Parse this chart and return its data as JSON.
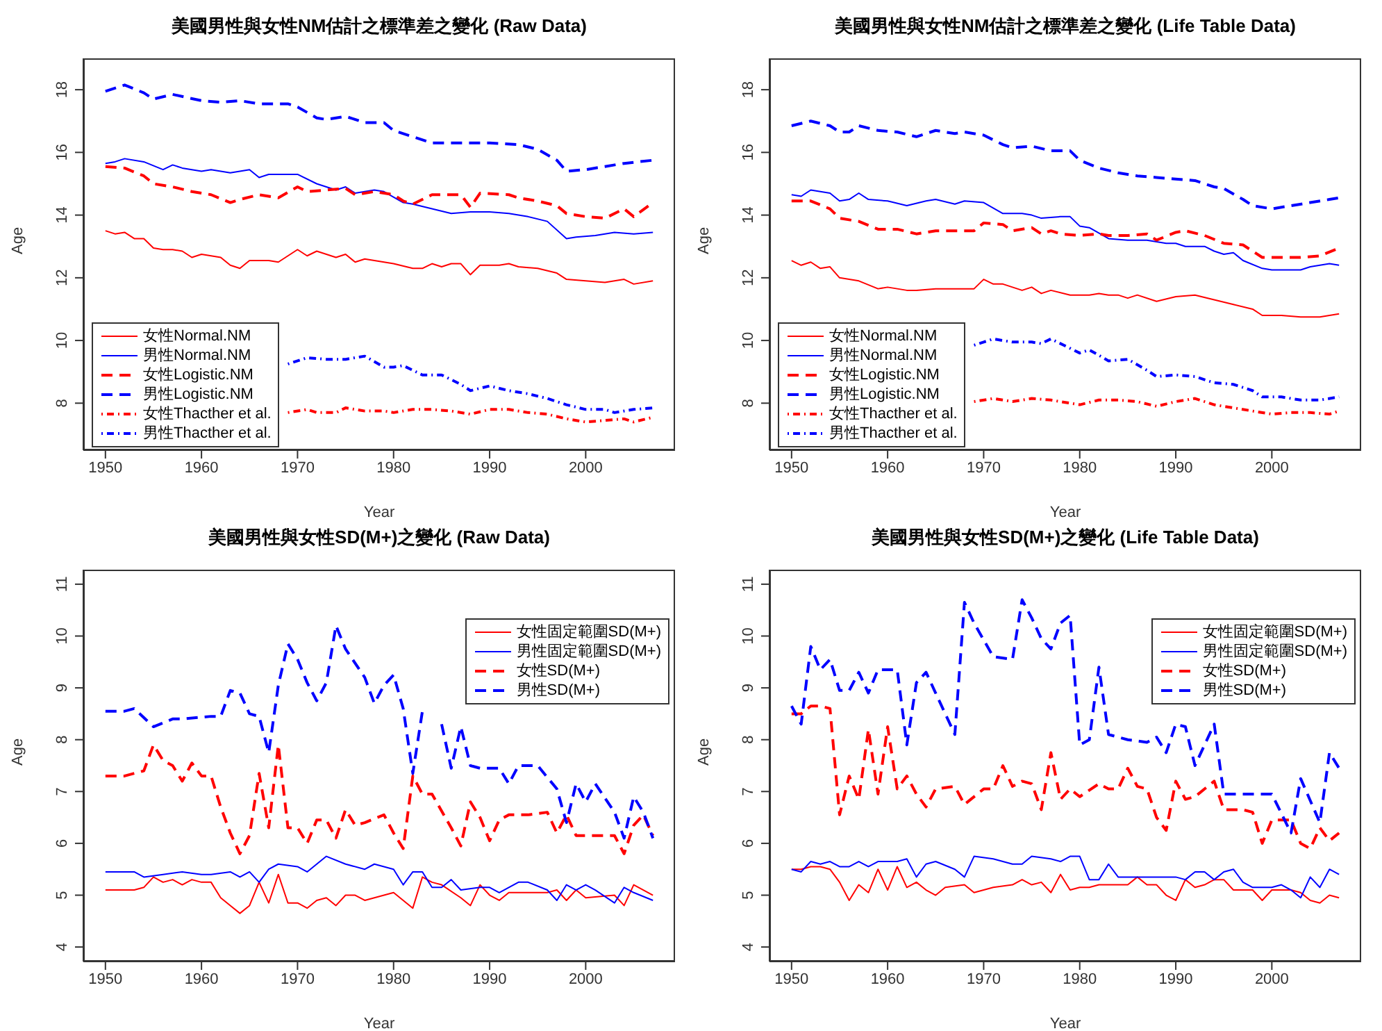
{
  "chart_data": [
    {
      "type": "line",
      "title": "美國男性與女性NM估計之標準差之變化 (Raw Data)",
      "xlabel": "Year",
      "ylabel": "Age",
      "xlim": [
        1947.7,
        2009.3
      ],
      "ylim": [
        6.5,
        19
      ],
      "xticks": [
        1950,
        1960,
        1970,
        1980,
        1990,
        2000
      ],
      "yticks": [
        8,
        10,
        12,
        14,
        16,
        18
      ],
      "legend": "bottom left",
      "series": [
        {
          "name": "女性Normal.NM",
          "color": "#ff0000",
          "line_style": "solid",
          "x": [
            1950,
            1951,
            1952,
            1953,
            1954,
            1955,
            1956,
            1957,
            1958,
            1959,
            1960,
            1962,
            1963,
            1964,
            1965,
            1967,
            1968,
            1970,
            1971,
            1972,
            1974,
            1975,
            1976,
            1977,
            1978,
            1980,
            1982,
            1983,
            1984,
            1985,
            1986,
            1987,
            1988,
            1989,
            1991,
            1992,
            1993,
            1995,
            1997,
            1998,
            2000,
            2002,
            2004,
            2005,
            2007
          ],
          "values": [
            13.5,
            13.4,
            13.45,
            13.25,
            13.25,
            12.95,
            12.9,
            12.9,
            12.85,
            12.65,
            12.75,
            12.65,
            12.4,
            12.3,
            12.55,
            12.55,
            12.5,
            12.9,
            12.7,
            12.85,
            12.65,
            12.75,
            12.5,
            12.6,
            12.55,
            12.45,
            12.3,
            12.3,
            12.45,
            12.35,
            12.45,
            12.45,
            12.1,
            12.4,
            12.4,
            12.45,
            12.35,
            12.3,
            12.15,
            11.95,
            11.9,
            11.85,
            11.95,
            11.8,
            11.9
          ]
        },
        {
          "name": "男性Normal.NM",
          "color": "#0000ff",
          "line_style": "solid",
          "x": [
            1950,
            1951,
            1952,
            1954,
            1956,
            1957,
            1958,
            1960,
            1961,
            1963,
            1965,
            1966,
            1967,
            1970,
            1972,
            1974,
            1975,
            1976,
            1978,
            1979,
            1981,
            1982,
            1984,
            1986,
            1988,
            1990,
            1992,
            1994,
            1996,
            1998,
            1999,
            2001,
            2003,
            2005,
            2007
          ],
          "values": [
            15.65,
            15.7,
            15.8,
            15.7,
            15.45,
            15.6,
            15.5,
            15.4,
            15.45,
            15.35,
            15.45,
            15.2,
            15.3,
            15.3,
            15.0,
            14.8,
            14.9,
            14.7,
            14.8,
            14.75,
            14.4,
            14.35,
            14.2,
            14.05,
            14.1,
            14.1,
            14.05,
            13.95,
            13.8,
            13.25,
            13.3,
            13.35,
            13.45,
            13.4,
            13.45
          ]
        },
        {
          "name": "女性Logistic.NM",
          "color": "#ff0000",
          "line_style": "dashed",
          "x": [
            1950,
            1952,
            1954,
            1955,
            1957,
            1959,
            1961,
            1963,
            1964,
            1966,
            1968,
            1970,
            1971,
            1973,
            1975,
            1976,
            1978,
            1980,
            1981,
            1982,
            1984,
            1987,
            1988,
            1989,
            1992,
            1993,
            1995,
            1997,
            1998,
            2000,
            2002,
            2004,
            2005,
            2007
          ],
          "values": [
            15.55,
            15.5,
            15.25,
            15.0,
            14.9,
            14.75,
            14.65,
            14.4,
            14.5,
            14.65,
            14.55,
            14.9,
            14.75,
            14.8,
            14.85,
            14.65,
            14.75,
            14.65,
            14.45,
            14.35,
            14.65,
            14.65,
            14.25,
            14.7,
            14.65,
            14.55,
            14.45,
            14.3,
            14.05,
            13.95,
            13.9,
            14.2,
            13.95,
            14.4
          ]
        },
        {
          "name": "男性Logistic.NM",
          "color": "#0000ff",
          "line_style": "dashed",
          "x": [
            1950,
            1952,
            1954,
            1955,
            1957,
            1960,
            1962,
            1964,
            1966,
            1969,
            1970,
            1972,
            1973,
            1975,
            1977,
            1979,
            1980,
            1982,
            1984,
            1987,
            1990,
            1993,
            1995,
            1997,
            1998,
            2000,
            2002,
            2004,
            2007
          ],
          "values": [
            17.95,
            18.15,
            17.9,
            17.7,
            17.85,
            17.65,
            17.6,
            17.65,
            17.55,
            17.55,
            17.45,
            17.1,
            17.05,
            17.15,
            16.95,
            16.95,
            16.7,
            16.5,
            16.3,
            16.3,
            16.3,
            16.25,
            16.1,
            15.75,
            15.4,
            15.45,
            15.55,
            15.65,
            15.75
          ]
        },
        {
          "name": "女性Thacther et al.",
          "color": "#ff0000",
          "line_style": "dotted",
          "x": [
            1969,
            1971,
            1972,
            1974,
            1975,
            1977,
            1979,
            1980,
            1982,
            1984,
            1986,
            1988,
            1990,
            1992,
            1994,
            1996,
            1998,
            2000,
            2002,
            2004,
            2005,
            2007
          ],
          "values": [
            7.7,
            7.8,
            7.7,
            7.7,
            7.85,
            7.75,
            7.75,
            7.7,
            7.8,
            7.8,
            7.75,
            7.65,
            7.8,
            7.8,
            7.7,
            7.65,
            7.5,
            7.4,
            7.45,
            7.5,
            7.4,
            7.55
          ]
        },
        {
          "name": "男性Thacther et al.",
          "color": "#0000ff",
          "line_style": "dotted",
          "x": [
            1969,
            1971,
            1973,
            1975,
            1977,
            1979,
            1980,
            1981,
            1983,
            1985,
            1987,
            1988,
            1990,
            1992,
            1994,
            1996,
            1998,
            2000,
            2002,
            2003,
            2005,
            2007
          ],
          "values": [
            9.25,
            9.45,
            9.4,
            9.4,
            9.5,
            9.15,
            9.15,
            9.2,
            8.9,
            8.9,
            8.6,
            8.4,
            8.55,
            8.4,
            8.3,
            8.15,
            7.95,
            7.8,
            7.8,
            7.7,
            7.8,
            7.85
          ]
        }
      ]
    },
    {
      "type": "line",
      "title": "美國男性與女性NM估計之標準差之變化 (Life Table Data)",
      "xlabel": "Year",
      "ylabel": "Age",
      "xlim": [
        1947.7,
        2009.3
      ],
      "ylim": [
        6.5,
        19
      ],
      "xticks": [
        1950,
        1960,
        1970,
        1980,
        1990,
        2000
      ],
      "yticks": [
        8,
        10,
        12,
        14,
        16,
        18
      ],
      "legend": "bottom left",
      "series": [
        {
          "name": "女性Normal.NM",
          "color": "#ff0000",
          "line_style": "solid",
          "x": [
            1950,
            1951,
            1952,
            1953,
            1954,
            1955,
            1957,
            1959,
            1960,
            1962,
            1963,
            1965,
            1968,
            1969,
            1970,
            1971,
            1972,
            1974,
            1975,
            1976,
            1977,
            1979,
            1981,
            1982,
            1983,
            1984,
            1985,
            1986,
            1988,
            1990,
            1992,
            1994,
            1996,
            1998,
            1999,
            2001,
            2003,
            2005,
            2007
          ],
          "values": [
            12.55,
            12.4,
            12.5,
            12.3,
            12.35,
            12.0,
            11.9,
            11.65,
            11.7,
            11.6,
            11.6,
            11.65,
            11.65,
            11.65,
            11.95,
            11.8,
            11.8,
            11.6,
            11.7,
            11.5,
            11.6,
            11.45,
            11.45,
            11.5,
            11.45,
            11.45,
            11.35,
            11.45,
            11.25,
            11.4,
            11.45,
            11.3,
            11.15,
            11.0,
            10.8,
            10.8,
            10.75,
            10.75,
            10.85
          ]
        },
        {
          "name": "男性Normal.NM",
          "color": "#0000ff",
          "line_style": "solid",
          "x": [
            1950,
            1951,
            1952,
            1954,
            1955,
            1956,
            1957,
            1958,
            1960,
            1962,
            1964,
            1965,
            1967,
            1968,
            1970,
            1972,
            1974,
            1975,
            1976,
            1978,
            1979,
            1980,
            1981,
            1983,
            1985,
            1987,
            1989,
            1990,
            1991,
            1993,
            1994,
            1995,
            1996,
            1997,
            1999,
            2000,
            2002,
            2003,
            2004,
            2006,
            2007
          ],
          "values": [
            14.65,
            14.6,
            14.8,
            14.7,
            14.45,
            14.5,
            14.7,
            14.5,
            14.45,
            14.3,
            14.45,
            14.5,
            14.35,
            14.45,
            14.4,
            14.05,
            14.05,
            14.0,
            13.9,
            13.95,
            13.95,
            13.65,
            13.6,
            13.25,
            13.2,
            13.2,
            13.1,
            13.1,
            13.0,
            13.0,
            12.85,
            12.75,
            12.8,
            12.55,
            12.3,
            12.25,
            12.25,
            12.25,
            12.35,
            12.45,
            12.4
          ]
        },
        {
          "name": "女性Logistic.NM",
          "color": "#ff0000",
          "line_style": "dashed",
          "x": [
            1950,
            1952,
            1954,
            1955,
            1957,
            1959,
            1961,
            1963,
            1965,
            1967,
            1969,
            1970,
            1972,
            1973,
            1975,
            1976,
            1977,
            1978,
            1980,
            1982,
            1983,
            1985,
            1987,
            1988,
            1990,
            1991,
            1993,
            1995,
            1997,
            1999,
            2001,
            2003,
            2005,
            2007
          ],
          "values": [
            14.45,
            14.45,
            14.2,
            13.9,
            13.8,
            13.55,
            13.55,
            13.4,
            13.5,
            13.5,
            13.5,
            13.75,
            13.7,
            13.5,
            13.6,
            13.4,
            13.5,
            13.4,
            13.35,
            13.4,
            13.35,
            13.35,
            13.4,
            13.2,
            13.45,
            13.5,
            13.35,
            13.1,
            13.05,
            12.65,
            12.65,
            12.65,
            12.7,
            12.95
          ]
        },
        {
          "name": "男性Logistic.NM",
          "color": "#0000ff",
          "line_style": "dashed",
          "x": [
            1950,
            1952,
            1954,
            1955,
            1956,
            1957,
            1959,
            1961,
            1963,
            1965,
            1967,
            1968,
            1970,
            1972,
            1973,
            1975,
            1977,
            1979,
            1980,
            1982,
            1984,
            1986,
            1988,
            1990,
            1992,
            1994,
            1995,
            1997,
            1998,
            2000,
            2002,
            2004,
            2006,
            2007
          ],
          "values": [
            16.85,
            17.0,
            16.85,
            16.65,
            16.65,
            16.85,
            16.7,
            16.65,
            16.5,
            16.7,
            16.6,
            16.65,
            16.55,
            16.25,
            16.15,
            16.2,
            16.05,
            16.05,
            15.75,
            15.5,
            15.35,
            15.25,
            15.2,
            15.15,
            15.1,
            14.9,
            14.85,
            14.5,
            14.3,
            14.2,
            14.3,
            14.4,
            14.5,
            14.55
          ]
        },
        {
          "name": "女性Thacther et al.",
          "color": "#ff0000",
          "line_style": "dotted",
          "x": [
            1969,
            1971,
            1973,
            1975,
            1977,
            1980,
            1982,
            1984,
            1986,
            1988,
            1990,
            1992,
            1994,
            1996,
            1998,
            2000,
            2002,
            2004,
            2006,
            2007
          ],
          "values": [
            8.05,
            8.15,
            8.05,
            8.15,
            8.1,
            7.95,
            8.1,
            8.1,
            8.05,
            7.9,
            8.05,
            8.15,
            7.95,
            7.85,
            7.75,
            7.65,
            7.7,
            7.7,
            7.65,
            7.75
          ]
        },
        {
          "name": "男性Thacther et al.",
          "color": "#0000ff",
          "line_style": "dotted",
          "x": [
            1969,
            1970,
            1971,
            1973,
            1975,
            1976,
            1977,
            1979,
            1980,
            1981,
            1983,
            1985,
            1987,
            1988,
            1990,
            1992,
            1994,
            1996,
            1998,
            1999,
            2001,
            2003,
            2005,
            2007
          ],
          "values": [
            9.85,
            9.95,
            10.05,
            9.95,
            9.95,
            9.9,
            10.05,
            9.75,
            9.6,
            9.7,
            9.35,
            9.4,
            9.05,
            8.85,
            8.9,
            8.85,
            8.65,
            8.6,
            8.4,
            8.2,
            8.2,
            8.1,
            8.1,
            8.2
          ]
        }
      ]
    },
    {
      "type": "line",
      "title": "美國男性與女性SD(M+)之變化 (Raw Data)",
      "xlabel": "Year",
      "ylabel": "Age",
      "xlim": [
        1947.7,
        2009.3
      ],
      "ylim": [
        3.72,
        11.28
      ],
      "xticks": [
        1950,
        1960,
        1970,
        1980,
        1990,
        2000
      ],
      "yticks": [
        4,
        5,
        6,
        7,
        8,
        9,
        10,
        11
      ],
      "legend": "top right",
      "series": [
        {
          "name": "女性固定範圍SD(M+)",
          "color": "#ff0000",
          "line_style": "solid",
          "x": [
            1950,
            1951,
            1953,
            1954,
            1955,
            1956,
            1957,
            1958,
            1959,
            1960,
            1961,
            1962,
            1963,
            1964,
            1965,
            1966,
            1967,
            1968,
            1969,
            1970,
            1971,
            1972,
            1973,
            1974,
            1975,
            1976,
            1977,
            1978,
            1980,
            1981,
            1982,
            1983,
            1984,
            1985,
            1987,
            1988,
            1989,
            1990,
            1991,
            1992,
            1994,
            1996,
            1997,
            1998,
            1999,
            2000,
            2003,
            2004,
            2005,
            2007
          ],
          "values": [
            5.1,
            5.1,
            5.1,
            5.15,
            5.35,
            5.25,
            5.3,
            5.2,
            5.3,
            5.25,
            5.25,
            4.95,
            4.8,
            4.65,
            4.8,
            5.25,
            4.85,
            5.4,
            4.85,
            4.85,
            4.75,
            4.9,
            4.95,
            4.8,
            5.0,
            5.0,
            4.9,
            4.95,
            5.05,
            4.9,
            4.75,
            5.35,
            5.25,
            5.2,
            4.95,
            4.8,
            5.2,
            5.0,
            4.9,
            5.05,
            5.05,
            5.05,
            5.1,
            4.9,
            5.1,
            4.95,
            5.0,
            4.8,
            5.2,
            5.0
          ]
        },
        {
          "name": "男性固定範圍SD(M+)",
          "color": "#0000ff",
          "line_style": "solid",
          "x": [
            1950,
            1953,
            1954,
            1956,
            1958,
            1960,
            1961,
            1963,
            1964,
            1965,
            1966,
            1967,
            1968,
            1970,
            1971,
            1973,
            1975,
            1977,
            1978,
            1980,
            1981,
            1982,
            1983,
            1984,
            1985,
            1986,
            1987,
            1989,
            1990,
            1991,
            1993,
            1994,
            1996,
            1997,
            1998,
            1999,
            2000,
            2001,
            2003,
            2004,
            2005,
            2007
          ],
          "values": [
            5.45,
            5.45,
            5.35,
            5.4,
            5.45,
            5.4,
            5.4,
            5.45,
            5.35,
            5.45,
            5.25,
            5.5,
            5.6,
            5.55,
            5.45,
            5.75,
            5.6,
            5.5,
            5.6,
            5.5,
            5.2,
            5.45,
            5.45,
            5.15,
            5.15,
            5.3,
            5.1,
            5.15,
            5.15,
            5.05,
            5.25,
            5.25,
            5.1,
            4.9,
            5.2,
            5.1,
            5.2,
            5.1,
            4.85,
            5.15,
            5.05,
            4.9
          ]
        },
        {
          "name": "女性SD(M+)",
          "color": "#ff0000",
          "line_style": "dashed",
          "x": [
            1950,
            1952,
            1954,
            1955,
            1956,
            1957,
            1958,
            1959,
            1960,
            1961,
            1962,
            1963,
            1964,
            1965,
            1966,
            1967,
            1968,
            1969,
            1970,
            1971,
            1972,
            1973,
            1974,
            1975,
            1976,
            1977,
            1979,
            1980,
            1981,
            1982,
            1983,
            1984,
            1986,
            1987,
            1988,
            1989,
            1990,
            1991,
            1992,
            1994,
            1996,
            1997,
            1998,
            1999,
            2001,
            2003,
            2004,
            2005,
            2006,
            2007
          ],
          "values": [
            7.3,
            7.3,
            7.4,
            7.9,
            7.6,
            7.5,
            7.2,
            7.55,
            7.3,
            7.3,
            6.7,
            6.2,
            5.8,
            6.15,
            7.35,
            6.3,
            7.9,
            6.3,
            6.3,
            6.0,
            6.45,
            6.45,
            6.1,
            6.65,
            6.35,
            6.4,
            6.55,
            6.2,
            5.9,
            7.3,
            6.95,
            6.95,
            6.3,
            5.95,
            6.8,
            6.5,
            6.05,
            6.45,
            6.55,
            6.55,
            6.6,
            6.2,
            6.55,
            6.15,
            6.15,
            6.15,
            5.8,
            6.35,
            6.55,
            6.15
          ]
        },
        {
          "name": "男性SD(M+)",
          "color": "#0000ff",
          "line_style": "dashed",
          "x": [
            1950,
            1952,
            1953,
            1955,
            1957,
            1958,
            1961,
            1962,
            1963,
            1964,
            1965,
            1966,
            1967,
            1968,
            1969,
            1970,
            1971,
            1972,
            1973,
            1974,
            1975,
            1977,
            1978,
            1979,
            1980,
            1981,
            1982,
            1983,
            1984,
            1985,
            1986,
            1987,
            1988,
            1989,
            1991,
            1992,
            1993,
            1995,
            1997,
            1998,
            1999,
            2000,
            2001,
            2003,
            2004,
            2005,
            2006,
            2007
          ],
          "values": [
            8.55,
            8.55,
            8.6,
            8.25,
            8.4,
            8.4,
            8.45,
            8.45,
            8.95,
            8.9,
            8.5,
            8.45,
            7.75,
            9.05,
            9.85,
            9.55,
            9.1,
            8.75,
            9.1,
            10.2,
            9.75,
            9.2,
            8.7,
            9.05,
            9.25,
            8.6,
            7.35,
            8.55,
            null,
            8.3,
            7.45,
            8.25,
            7.5,
            7.45,
            7.45,
            7.15,
            7.5,
            7.5,
            7.05,
            6.4,
            7.15,
            6.8,
            7.15,
            6.6,
            6.1,
            6.9,
            6.6,
            6.1
          ]
        }
      ]
    },
    {
      "type": "line",
      "title": "美國男性與女性SD(M+)之變化 (Life Table Data)",
      "xlabel": "Year",
      "ylabel": "Age",
      "xlim": [
        1947.7,
        2009.3
      ],
      "ylim": [
        3.72,
        11.28
      ],
      "xticks": [
        1950,
        1960,
        1970,
        1980,
        1990,
        2000
      ],
      "yticks": [
        4,
        5,
        6,
        7,
        8,
        9,
        10,
        11
      ],
      "legend": "top right",
      "series": [
        {
          "name": "女性固定範圍SD(M+)",
          "color": "#ff0000",
          "line_style": "solid",
          "x": [
            1950,
            1951,
            1952,
            1953,
            1954,
            1955,
            1956,
            1957,
            1958,
            1959,
            1960,
            1961,
            1962,
            1963,
            1964,
            1965,
            1966,
            1968,
            1969,
            1970,
            1971,
            1973,
            1974,
            1975,
            1976,
            1977,
            1978,
            1979,
            1980,
            1981,
            1982,
            1983,
            1985,
            1986,
            1987,
            1988,
            1989,
            1990,
            1991,
            1992,
            1993,
            1994,
            1995,
            1996,
            1997,
            1998,
            1999,
            2000,
            2001,
            2002,
            2003,
            2004,
            2005,
            2006,
            2007
          ],
          "values": [
            5.5,
            5.5,
            5.55,
            5.55,
            5.5,
            5.25,
            4.9,
            5.2,
            5.05,
            5.5,
            5.1,
            5.55,
            5.15,
            5.25,
            5.1,
            5.0,
            5.15,
            5.2,
            5.05,
            5.1,
            5.15,
            5.2,
            5.3,
            5.2,
            5.25,
            5.05,
            5.4,
            5.1,
            5.15,
            5.15,
            5.2,
            5.2,
            5.2,
            5.35,
            5.2,
            5.2,
            5.0,
            4.9,
            5.3,
            5.15,
            5.2,
            5.3,
            5.3,
            5.1,
            5.1,
            5.1,
            4.9,
            5.1,
            5.1,
            5.1,
            5.05,
            4.9,
            4.85,
            5.0,
            4.95
          ]
        },
        {
          "name": "男性固定範圍SD(M+)",
          "color": "#0000ff",
          "line_style": "solid",
          "x": [
            1950,
            1951,
            1952,
            1953,
            1954,
            1955,
            1956,
            1957,
            1958,
            1959,
            1961,
            1962,
            1963,
            1964,
            1965,
            1967,
            1968,
            1969,
            1971,
            1973,
            1974,
            1975,
            1977,
            1978,
            1979,
            1980,
            1981,
            1982,
            1983,
            1984,
            1986,
            1988,
            1990,
            1991,
            1992,
            1993,
            1994,
            1995,
            1996,
            1997,
            1998,
            2000,
            2001,
            2002,
            2003,
            2004,
            2005,
            2006,
            2007
          ],
          "values": [
            5.5,
            5.45,
            5.65,
            5.6,
            5.65,
            5.55,
            5.55,
            5.65,
            5.55,
            5.65,
            5.65,
            5.7,
            5.35,
            5.6,
            5.65,
            5.5,
            5.35,
            5.75,
            5.7,
            5.6,
            5.6,
            5.75,
            5.7,
            5.65,
            5.75,
            5.75,
            5.3,
            5.3,
            5.6,
            5.35,
            5.35,
            5.35,
            5.35,
            5.3,
            5.45,
            5.45,
            5.3,
            5.45,
            5.5,
            5.25,
            5.15,
            5.15,
            5.2,
            5.1,
            4.95,
            5.35,
            5.15,
            5.5,
            5.4
          ]
        },
        {
          "name": "女性SD(M+)",
          "color": "#ff0000",
          "line_style": "dashed",
          "x": [
            1950,
            1951,
            1952,
            1953,
            1954,
            1955,
            1956,
            1957,
            1958,
            1959,
            1960,
            1961,
            1962,
            1963,
            1964,
            1965,
            1967,
            1968,
            1970,
            1971,
            1972,
            1973,
            1974,
            1975,
            1976,
            1977,
            1978,
            1979,
            1980,
            1982,
            1983,
            1984,
            1985,
            1986,
            1987,
            1988,
            1989,
            1990,
            1991,
            1992,
            1994,
            1995,
            1997,
            1998,
            1999,
            2000,
            2001,
            2002,
            2003,
            2004,
            2005,
            2006,
            2007
          ],
          "values": [
            8.5,
            8.5,
            8.65,
            8.65,
            8.6,
            6.55,
            7.3,
            6.85,
            8.2,
            6.95,
            8.25,
            7.05,
            7.3,
            6.95,
            6.7,
            7.05,
            7.1,
            6.75,
            7.05,
            7.05,
            7.5,
            7.1,
            7.2,
            7.15,
            6.65,
            7.75,
            6.85,
            7.05,
            6.9,
            7.15,
            7.05,
            7.05,
            7.45,
            7.1,
            7.05,
            6.5,
            6.25,
            7.2,
            6.85,
            6.9,
            7.2,
            6.65,
            6.65,
            6.6,
            6.0,
            6.45,
            6.45,
            6.45,
            6.0,
            5.9,
            6.3,
            6.05,
            6.2
          ]
        },
        {
          "name": "男性SD(M+)",
          "color": "#0000ff",
          "line_style": "dashed",
          "x": [
            1950,
            1951,
            1952,
            1953,
            1954,
            1955,
            1956,
            1957,
            1958,
            1959,
            1960,
            1961,
            1962,
            1963,
            1964,
            1965,
            1967,
            1968,
            1969,
            1971,
            1973,
            1974,
            1975,
            1976,
            1977,
            1978,
            1979,
            1980,
            1981,
            1982,
            1983,
            1985,
            1987,
            1988,
            1989,
            1990,
            1991,
            1992,
            1994,
            1995,
            1998,
            2000,
            2002,
            2003,
            2005,
            2006,
            2007
          ],
          "values": [
            8.65,
            8.3,
            9.8,
            9.35,
            9.55,
            8.95,
            8.95,
            9.3,
            8.9,
            9.35,
            9.35,
            9.35,
            7.9,
            9.1,
            9.3,
            8.9,
            8.1,
            10.65,
            10.25,
            9.6,
            9.55,
            10.7,
            10.35,
            9.95,
            9.75,
            10.25,
            10.4,
            7.9,
            8.0,
            9.4,
            8.1,
            8.0,
            7.95,
            8.05,
            7.75,
            8.3,
            8.25,
            7.5,
            8.3,
            6.95,
            6.95,
            6.95,
            6.2,
            7.25,
            6.4,
            7.75,
            7.45
          ]
        }
      ]
    }
  ]
}
